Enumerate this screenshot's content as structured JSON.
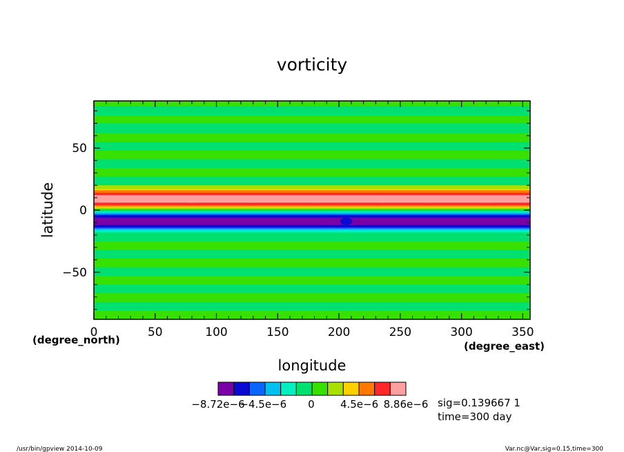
{
  "chart_data": {
    "type": "heatmap",
    "title": "vorticity",
    "xlabel": "longitude",
    "ylabel": "latitude",
    "x_unit": "(degree_east)",
    "y_unit": "(degree_north)",
    "xlim": [
      0,
      356
    ],
    "ylim": [
      -88,
      88
    ],
    "x_ticks": [
      "0",
      "50",
      "100",
      "150",
      "200",
      "250",
      "300",
      "350"
    ],
    "x_tick_values": [
      0,
      50,
      100,
      150,
      200,
      250,
      300,
      350
    ],
    "y_ticks": [
      "50",
      "0",
      "−50"
    ],
    "y_tick_values": [
      50,
      0,
      -50
    ],
    "colorbar": {
      "colors": [
        "#7a00a8",
        "#0a0ad2",
        "#0a64ff",
        "#00c0f0",
        "#00f0c0",
        "#00e070",
        "#38e000",
        "#a8e000",
        "#ffd000",
        "#ff7800",
        "#ff2828",
        "#ffa0a0"
      ],
      "labels": [
        "−8.72e−6",
        "−4.5e−6",
        "0",
        "4.5e−6",
        "8.86e−6"
      ],
      "label_values": [
        -8.72e-06,
        -4.5e-06,
        0,
        4.5e-06,
        8.86e-06
      ]
    },
    "bands": [
      {
        "lat_from": 88,
        "lat_to": 84,
        "color": "#38e000"
      },
      {
        "lat_from": 84,
        "lat_to": 76,
        "color": "#00e070"
      },
      {
        "lat_from": 76,
        "lat_to": 70,
        "color": "#38e000"
      },
      {
        "lat_from": 70,
        "lat_to": 62,
        "color": "#00e070"
      },
      {
        "lat_from": 62,
        "lat_to": 55,
        "color": "#38e000"
      },
      {
        "lat_from": 55,
        "lat_to": 48,
        "color": "#00e070"
      },
      {
        "lat_from": 48,
        "lat_to": 41,
        "color": "#38e000"
      },
      {
        "lat_from": 41,
        "lat_to": 34,
        "color": "#00e070"
      },
      {
        "lat_from": 34,
        "lat_to": 27,
        "color": "#38e000"
      },
      {
        "lat_from": 27,
        "lat_to": 20,
        "color": "#00e070"
      },
      {
        "lat_from": 20,
        "lat_to": 17,
        "color": "#a8e000"
      },
      {
        "lat_from": 17,
        "lat_to": 16,
        "color": "#ffd000"
      },
      {
        "lat_from": 16,
        "lat_to": 14,
        "color": "#ff7800"
      },
      {
        "lat_from": 14,
        "lat_to": 12,
        "color": "#ff2828"
      },
      {
        "lat_from": 12,
        "lat_to": 6,
        "color": "#ffa0a0"
      },
      {
        "lat_from": 6,
        "lat_to": 4,
        "color": "#ff2828"
      },
      {
        "lat_from": 4,
        "lat_to": 3,
        "color": "#ff7800"
      },
      {
        "lat_from": 3,
        "lat_to": 2,
        "color": "#ffd000"
      },
      {
        "lat_from": 2,
        "lat_to": 1,
        "color": "#a8e000"
      },
      {
        "lat_from": 1,
        "lat_to": 0,
        "color": "#38e000"
      },
      {
        "lat_from": 0,
        "lat_to": -1,
        "color": "#00e070"
      },
      {
        "lat_from": -1,
        "lat_to": -2,
        "color": "#00f0c0"
      },
      {
        "lat_from": -2,
        "lat_to": -3,
        "color": "#00c0f0"
      },
      {
        "lat_from": -3,
        "lat_to": -4,
        "color": "#0a64ff"
      },
      {
        "lat_from": -4,
        "lat_to": -6,
        "color": "#0a0ad2"
      },
      {
        "lat_from": -6,
        "lat_to": -12,
        "color": "#7a00a8"
      },
      {
        "lat_from": -12,
        "lat_to": -14,
        "color": "#0a0ad2"
      },
      {
        "lat_from": -14,
        "lat_to": -15,
        "color": "#0a64ff"
      },
      {
        "lat_from": -15,
        "lat_to": -16,
        "color": "#00c0f0"
      },
      {
        "lat_from": -16,
        "lat_to": -18,
        "color": "#00f0c0"
      },
      {
        "lat_from": -18,
        "lat_to": -25,
        "color": "#00e070"
      },
      {
        "lat_from": -25,
        "lat_to": -32,
        "color": "#38e000"
      },
      {
        "lat_from": -32,
        "lat_to": -39,
        "color": "#00e070"
      },
      {
        "lat_from": -39,
        "lat_to": -46,
        "color": "#38e000"
      },
      {
        "lat_from": -46,
        "lat_to": -53,
        "color": "#00e070"
      },
      {
        "lat_from": -53,
        "lat_to": -60,
        "color": "#38e000"
      },
      {
        "lat_from": -60,
        "lat_to": -67,
        "color": "#00e070"
      },
      {
        "lat_from": -67,
        "lat_to": -74,
        "color": "#38e000"
      },
      {
        "lat_from": -74,
        "lat_to": -81,
        "color": "#00e070"
      },
      {
        "lat_from": -81,
        "lat_to": -88,
        "color": "#38e000"
      }
    ],
    "blobs": [
      {
        "lon": 20,
        "lat": 9,
        "lon_radius": 14,
        "lat_radius": 3,
        "color": "#ffa0a0"
      },
      {
        "lon": 80,
        "lat": 9,
        "lon_radius": 18,
        "lat_radius": 3,
        "color": "#ffa0a0"
      },
      {
        "lon": 128,
        "lat": 9,
        "lon_radius": 16,
        "lat_radius": 3,
        "color": "#ffa0a0"
      },
      {
        "lon": 182,
        "lat": 9,
        "lon_radius": 20,
        "lat_radius": 3,
        "color": "#ffa0a0"
      },
      {
        "lon": 236,
        "lat": 9,
        "lon_radius": 14,
        "lat_radius": 3,
        "color": "#ffa0a0"
      },
      {
        "lon": 273,
        "lat": 9,
        "lon_radius": 13,
        "lat_radius": 3,
        "color": "#ffa0a0"
      },
      {
        "lon": 320,
        "lat": 9,
        "lon_radius": 20,
        "lat_radius": 3,
        "color": "#ffa0a0"
      },
      {
        "lon": 206,
        "lat": -9,
        "lon_radius": 5,
        "lat_radius": 3,
        "color": "#0a0ad2"
      }
    ]
  },
  "legend_info": {
    "line1": "sig=0.139667 1",
    "line2": "time=300 day"
  },
  "footer": {
    "left": "/usr/bin/gpview  2014-10-09",
    "right": "Var.nc@Var,sig=0.15,time=300"
  }
}
